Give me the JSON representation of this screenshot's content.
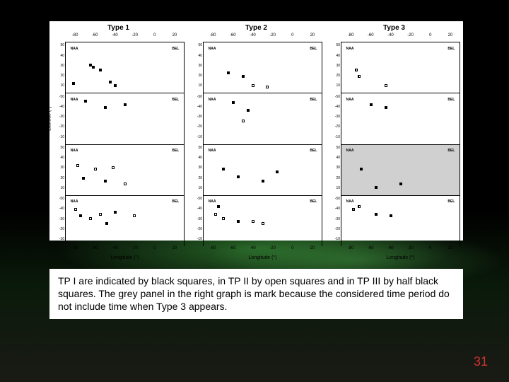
{
  "background": {
    "aurora_color": "#64ff64",
    "sky_color": "#000000"
  },
  "chart": {
    "panels": [
      {
        "title": "Type 1",
        "greyed_row": null
      },
      {
        "title": "Type 2",
        "greyed_row": null
      },
      {
        "title": "Type 3",
        "greyed_row": 2
      }
    ],
    "x_axis": {
      "label": "Longitude (°)",
      "ticks": [
        -80,
        -60,
        -40,
        -20,
        0,
        20
      ],
      "lim": [
        -90,
        30
      ]
    },
    "y_axis": {
      "label": "Latitude (°)",
      "ticks": [
        -10,
        -20,
        -30,
        -40,
        -50,
        10,
        20,
        30,
        40,
        50
      ],
      "subpanel_lim": [
        -55,
        55
      ]
    },
    "station_labels": [
      "NAA",
      "BEL"
    ],
    "colors": {
      "bg": "#ffffff",
      "axis": "#000000",
      "grey_panel": "#d0d0d0"
    },
    "marker_styles": {
      "filled": {
        "fill": "#000000",
        "size": 4
      },
      "open": {
        "fill": "#ffffff",
        "border": "#000000",
        "size": 4
      },
      "half": {
        "left": "#000000",
        "right": "#ffffff",
        "border": "#000000",
        "size": 4
      }
    },
    "data": {
      "panel1": {
        "row0": [
          {
            "x": -65,
            "y": 30,
            "t": "filled"
          },
          {
            "x": -62,
            "y": 28,
            "t": "filled"
          },
          {
            "x": -82,
            "y": 10,
            "t": "filled"
          },
          {
            "x": -55,
            "y": 25,
            "t": "filled"
          },
          {
            "x": -45,
            "y": 12,
            "t": "filled"
          },
          {
            "x": -40,
            "y": 8,
            "t": "filled"
          }
        ],
        "row1": [
          {
            "x": -70,
            "y": -8,
            "t": "filled"
          },
          {
            "x": -50,
            "y": -15,
            "t": "filled"
          },
          {
            "x": -30,
            "y": -12,
            "t": "filled"
          }
        ],
        "row2": [
          {
            "x": -78,
            "y": 32,
            "t": "open"
          },
          {
            "x": -60,
            "y": 28,
            "t": "open"
          },
          {
            "x": -42,
            "y": 30,
            "t": "open"
          },
          {
            "x": -72,
            "y": 18,
            "t": "filled"
          },
          {
            "x": -50,
            "y": 15,
            "t": "filled"
          },
          {
            "x": -30,
            "y": 12,
            "t": "open"
          }
        ],
        "row3": [
          {
            "x": -80,
            "y": -15,
            "t": "open"
          },
          {
            "x": -75,
            "y": -22,
            "t": "filled"
          },
          {
            "x": -65,
            "y": -25,
            "t": "open"
          },
          {
            "x": -55,
            "y": -20,
            "t": "open"
          },
          {
            "x": -48,
            "y": -30,
            "t": "filled"
          },
          {
            "x": -40,
            "y": -18,
            "t": "filled"
          },
          {
            "x": -20,
            "y": -22,
            "t": "open"
          }
        ]
      },
      "panel2": {
        "row0": [
          {
            "x": -65,
            "y": 22,
            "t": "filled"
          },
          {
            "x": -50,
            "y": 18,
            "t": "filled"
          },
          {
            "x": -40,
            "y": 8,
            "t": "open"
          },
          {
            "x": -25,
            "y": 6,
            "t": "open"
          }
        ],
        "row1": [
          {
            "x": -60,
            "y": -10,
            "t": "filled"
          },
          {
            "x": -45,
            "y": -18,
            "t": "filled"
          },
          {
            "x": -50,
            "y": -30,
            "t": "open"
          }
        ],
        "row2": [
          {
            "x": -70,
            "y": 28,
            "t": "filled"
          },
          {
            "x": -55,
            "y": 20,
            "t": "filled"
          },
          {
            "x": -30,
            "y": 15,
            "t": "filled"
          },
          {
            "x": -15,
            "y": 25,
            "t": "filled"
          }
        ],
        "row3": [
          {
            "x": -78,
            "y": -20,
            "t": "open"
          },
          {
            "x": -70,
            "y": -25,
            "t": "open"
          },
          {
            "x": -75,
            "y": -12,
            "t": "filled"
          },
          {
            "x": -55,
            "y": -28,
            "t": "filled"
          },
          {
            "x": -40,
            "y": -28,
            "t": "open"
          },
          {
            "x": -30,
            "y": -30,
            "t": "open"
          }
        ]
      },
      "panel3": {
        "row0": [
          {
            "x": -75,
            "y": 25,
            "t": "half"
          },
          {
            "x": -72,
            "y": 18,
            "t": "half"
          },
          {
            "x": -45,
            "y": 8,
            "t": "open"
          }
        ],
        "row1": [
          {
            "x": -60,
            "y": -12,
            "t": "filled"
          },
          {
            "x": -45,
            "y": -15,
            "t": "filled"
          }
        ],
        "row2": [
          {
            "x": -70,
            "y": 28,
            "t": "filled"
          },
          {
            "x": -55,
            "y": 8,
            "t": "filled"
          },
          {
            "x": -30,
            "y": 12,
            "t": "filled"
          }
        ],
        "row3": [
          {
            "x": -78,
            "y": -15,
            "t": "half"
          },
          {
            "x": -72,
            "y": -12,
            "t": "half"
          },
          {
            "x": -55,
            "y": -20,
            "t": "filled"
          },
          {
            "x": -40,
            "y": -22,
            "t": "filled"
          }
        ]
      }
    }
  },
  "caption": "TP I are indicated by black squares, in TP II by open squares and in TP III by half black squares. The grey panel in the right graph is mark because the considered time period do not include time when Type 3 appears.",
  "page_number": "31"
}
